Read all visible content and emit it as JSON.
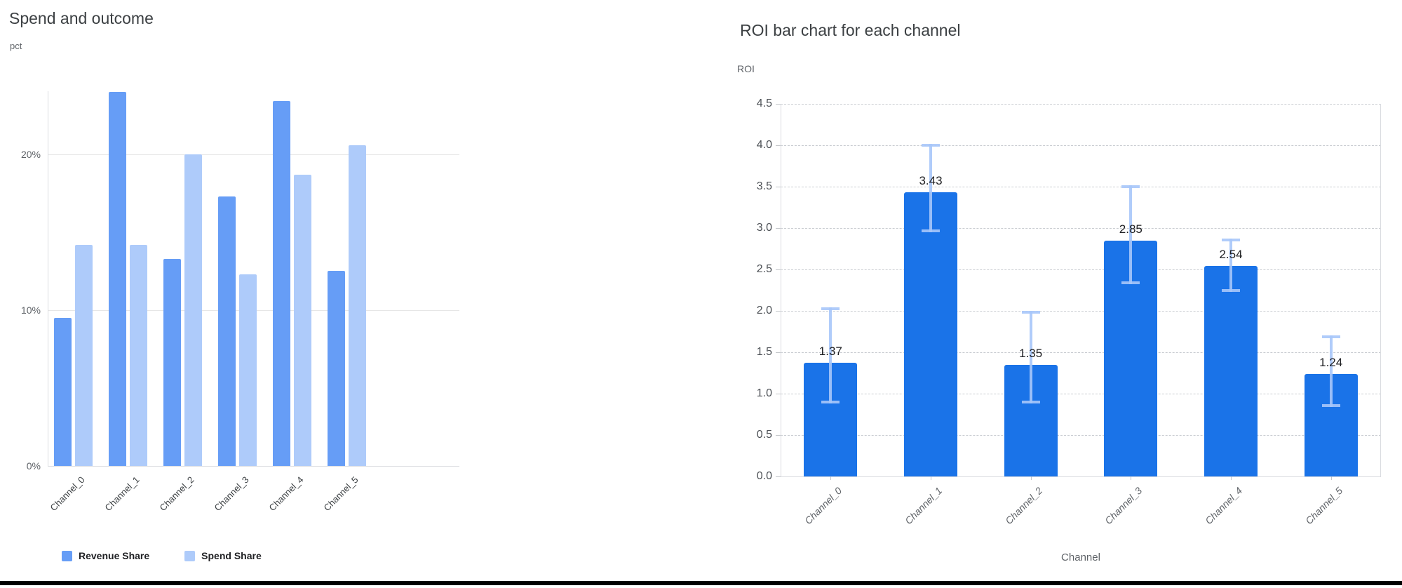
{
  "page": {
    "background_color": "#ffffff",
    "bottom_rule_color": "#000000"
  },
  "chart_data": [
    {
      "type": "bar",
      "title": "Spend and outcome",
      "ylabel": "pct",
      "xlabel": "",
      "categories": [
        "Channel_0",
        "Channel_1",
        "Channel_2",
        "Channel_3",
        "Channel_4",
        "Channel_5"
      ],
      "series": [
        {
          "name": "Revenue Share",
          "color": "#669df6",
          "values": [
            9.5,
            24.0,
            13.3,
            17.3,
            23.4,
            12.5
          ]
        },
        {
          "name": "Spend Share",
          "color": "#aecbfa",
          "values": [
            14.2,
            14.2,
            20.0,
            12.3,
            18.7,
            20.6
          ]
        }
      ],
      "ylim": [
        0,
        24.05
      ],
      "yticks": [
        {
          "value": 0,
          "label": "0%"
        },
        {
          "value": 10,
          "label": "10%"
        },
        {
          "value": 20,
          "label": "20%"
        }
      ],
      "grid": "solid",
      "legend_position": "bottom"
    },
    {
      "type": "bar",
      "title": "ROI bar chart for each channel",
      "ylabel": "ROI",
      "xlabel": "Channel",
      "categories": [
        "Channel_0",
        "Channel_1",
        "Channel_2",
        "Channel_3",
        "Channel_4",
        "Channel_5"
      ],
      "values": [
        1.37,
        3.43,
        1.35,
        2.85,
        2.54,
        1.24
      ],
      "value_labels": [
        "1.37",
        "3.43",
        "1.35",
        "2.85",
        "2.54",
        "1.24"
      ],
      "error_low": [
        0.88,
        2.95,
        0.88,
        2.32,
        2.23,
        0.84
      ],
      "error_high": [
        2.04,
        4.02,
        2.0,
        3.52,
        2.87,
        1.7
      ],
      "bar_color": "#1a73e8",
      "error_bar_color": "#a7c7fa",
      "ylim": [
        0,
        4.5
      ],
      "ytick_step": 0.5,
      "grid": "dashed",
      "legend_position": "none"
    }
  ]
}
